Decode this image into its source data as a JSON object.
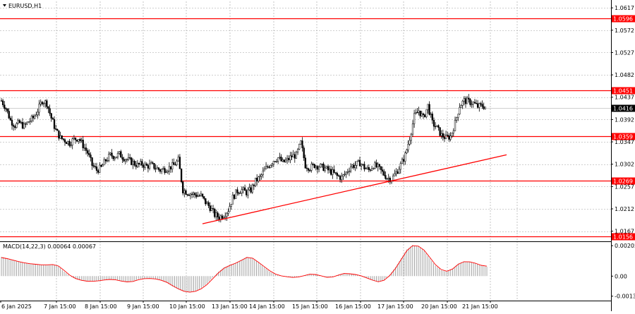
{
  "window": {
    "symbol_label": "EURUSD,H1",
    "menu_icon": "triangle-down-icon"
  },
  "colors": {
    "level_line": "#ff0000",
    "trend_line": "#ff0000",
    "grid": "#a0a0a0",
    "candle": "#000000",
    "current_price_bg": "#000000",
    "macd_histogram": "#9a9a9a",
    "macd_signal": "#ff0000"
  },
  "chart_data": {
    "type": "candlestick",
    "symbol": "EURUSD",
    "timeframe": "H1",
    "price_axis_ticks": [
      "1.0617",
      "1.0572",
      "1.0527",
      "1.0482",
      "1.0437",
      "1.0392",
      "1.0347",
      "1.0302",
      "1.0257",
      "1.0212",
      "1.0167"
    ],
    "price_range": [
      1.0148,
      1.063
    ],
    "time_axis_labels": [
      "6 Jan 2025",
      "7 Jan 15:00",
      "8 Jan 15:00",
      "9 Jan 15:00",
      "10 Jan 15:00",
      "13 Jan 15:00",
      "14 Jan 15:00",
      "15 Jan 15:00",
      "16 Jan 15:00",
      "17 Jan 15:00",
      "20 Jan 15:00",
      "21 Jan 15:00"
    ],
    "horizontal_levels": [
      {
        "price": 1.0596,
        "label": "1.0596"
      },
      {
        "price": 1.0451,
        "label": "1.0451"
      },
      {
        "price": 1.0359,
        "label": "1.0359"
      },
      {
        "price": 1.0269,
        "label": "1.0269"
      },
      {
        "price": 1.0156,
        "label": "1.0156"
      }
    ],
    "current_price": {
      "price": 1.0416,
      "label": "1.0416"
    },
    "trend_line": {
      "from": {
        "time": "10 Jan 2025 ~20:00",
        "price": 1.0182
      },
      "to": {
        "time": "22 Jan 2025 ~09:00",
        "price": 1.0321
      }
    },
    "price_path": [
      1.043,
      1.0415,
      1.039,
      1.038,
      1.0385,
      1.0378,
      1.0388,
      1.0395,
      1.041,
      1.043,
      1.0425,
      1.0395,
      1.037,
      1.0355,
      1.035,
      1.0345,
      1.0352,
      1.0355,
      1.034,
      1.0325,
      1.03,
      1.029,
      1.0295,
      1.031,
      1.032,
      1.0318,
      1.0322,
      1.0315,
      1.031,
      1.0305,
      1.03,
      1.0302,
      1.0298,
      1.03,
      1.0295,
      1.029,
      1.0292,
      1.0295,
      1.03,
      1.031,
      1.025,
      1.0245,
      1.0242,
      1.024,
      1.0238,
      1.0225,
      1.0215,
      1.02,
      1.0195,
      1.02,
      1.021,
      1.0235,
      1.0248,
      1.025,
      1.0245,
      1.025,
      1.0268,
      1.0275,
      1.029,
      1.03,
      1.031,
      1.0315,
      1.0305,
      1.031,
      1.0318,
      1.032,
      1.0345,
      1.03,
      1.0295,
      1.03,
      1.0298,
      1.0295,
      1.029,
      1.0285,
      1.0278,
      1.0275,
      1.0285,
      1.0298,
      1.03,
      1.0305,
      1.0295,
      1.029,
      1.03,
      1.0295,
      1.0285,
      1.0275,
      1.0272,
      1.0285,
      1.03,
      1.032,
      1.0355,
      1.0398,
      1.041,
      1.0395,
      1.042,
      1.0385,
      1.0375,
      1.036,
      1.0355,
      1.0358,
      1.0385,
      1.042,
      1.043,
      1.0428,
      1.0425,
      1.0418,
      1.042,
      1.0416
    ],
    "macd": {
      "label": "MACD(14,22,3) 0.00064 0.00067",
      "axis_ticks": [
        "0.00205",
        "0.00",
        "-0.00135"
      ],
      "range": [
        -0.0016,
        0.00225
      ],
      "histogram": [
        0.0013,
        0.0012,
        0.0011,
        0.001,
        0.0009,
        0.00085,
        0.0008,
        0.00075,
        0.00075,
        0.0008,
        0.00065,
        0.0003,
        0.0,
        -0.0002,
        -0.0003,
        -0.00035,
        -0.00035,
        -0.0003,
        -0.00025,
        -0.0002,
        -0.00025,
        -0.00035,
        -0.0004,
        -0.00035,
        -0.0002,
        -0.00015,
        -0.00015,
        -0.0002,
        -0.0003,
        -0.00045,
        -0.0007,
        -0.0009,
        -0.00105,
        -0.0011,
        -0.001,
        -0.0008,
        -0.0005,
        -0.0001,
        0.0003,
        0.0006,
        0.00075,
        0.0009,
        0.0011,
        0.0013,
        0.0012,
        0.0009,
        0.0006,
        0.0003,
        0.0001,
        0.0,
        -5e-05,
        -0.0001,
        -5e-05,
        5e-05,
        0.00015,
        0.0001,
        0.0,
        -0.0001,
        -5e-05,
        0.0001,
        0.0002,
        0.00015,
        0.0001,
        0.0,
        -0.00015,
        -0.0003,
        -0.0004,
        -0.00025,
        0.0001,
        0.0006,
        0.0012,
        0.0018,
        0.0021,
        0.002,
        0.0017,
        0.0012,
        0.0007,
        0.0004,
        0.0003,
        0.0005,
        0.00085,
        0.001,
        0.00095,
        0.00085,
        0.0007,
        0.00064
      ],
      "signal": [
        0.00125,
        0.00118,
        0.00108,
        0.00098,
        0.0009,
        0.00084,
        0.0008,
        0.00076,
        0.00076,
        0.00078,
        0.00068,
        0.00038,
        6e-05,
        -0.00016,
        -0.00028,
        -0.00034,
        -0.00035,
        -0.00031,
        -0.00026,
        -0.00022,
        -0.00025,
        -0.00033,
        -0.00039,
        -0.00036,
        -0.00024,
        -0.00017,
        -0.00016,
        -0.00019,
        -0.00028,
        -0.00042,
        -0.00065,
        -0.00086,
        -0.00102,
        -0.00108,
        -0.00102,
        -0.00085,
        -0.00057,
        -0.00018,
        0.00022,
        0.00054,
        0.00072,
        0.00087,
        0.00106,
        0.00126,
        0.00121,
        0.00094,
        0.00065,
        0.00036,
        0.00014,
        2e-05,
        -4e-05,
        -9e-05,
        -6e-05,
        3e-05,
        0.00013,
        0.00011,
        2e-05,
        -8e-05,
        -6e-05,
        7e-05,
        0.00018,
        0.00016,
        0.00011,
        2e-05,
        -0.00012,
        -0.00027,
        -0.00038,
        -0.00028,
        4e-05,
        0.00052,
        0.00112,
        0.00172,
        0.00205,
        0.00202,
        0.00175,
        0.00127,
        0.00077,
        0.00045,
        0.00033,
        0.00048,
        0.0008,
        0.00097,
        0.00096,
        0.00087,
        0.00073,
        0.00067
      ]
    }
  }
}
